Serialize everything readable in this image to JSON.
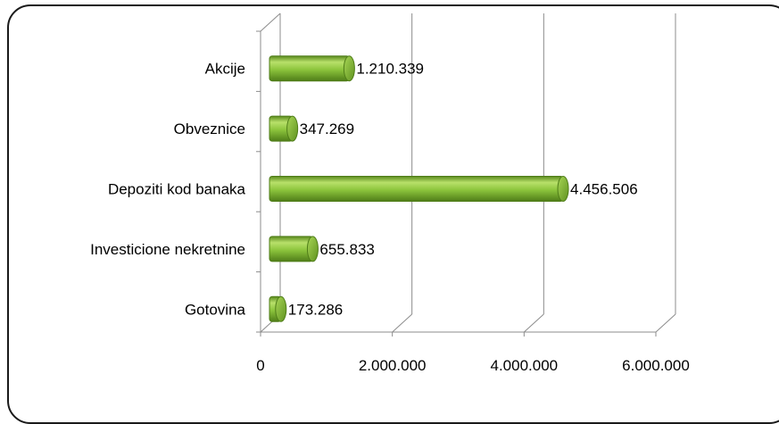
{
  "chart_data": {
    "type": "bar",
    "orientation": "horizontal",
    "categories": [
      "Akcije",
      "Obveznice",
      "Depoziti kod banaka",
      "Investicione nekretnine",
      "Gotovina"
    ],
    "values": [
      1210339,
      347269,
      4456506,
      655833,
      173286
    ],
    "value_labels": [
      "1.210.339",
      "347.269",
      "4.456.506",
      "655.833",
      "173.286"
    ],
    "x_ticks": [
      0,
      2000000,
      4000000,
      6000000
    ],
    "x_tick_labels": [
      "0",
      "2.000.000",
      "4.000.000",
      "6.000.000"
    ],
    "xlim": [
      0,
      6000000
    ],
    "title": "",
    "xlabel": "",
    "ylabel": "",
    "grid": "vertical",
    "legend": "none",
    "style": "3d-cylinder",
    "colors": {
      "bar_light": "#b8e06a",
      "bar_mid": "#8cc43c",
      "bar_dark": "#5a8a1e",
      "grid": "#8c8c8c"
    }
  }
}
